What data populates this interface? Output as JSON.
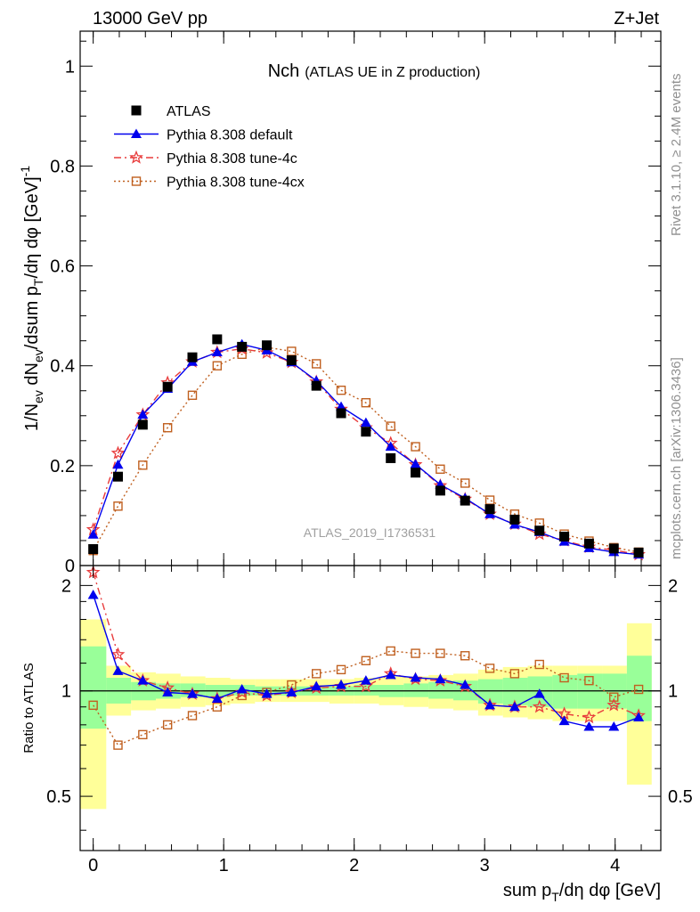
{
  "header": {
    "left": "13000 GeV pp",
    "right": "Z+Jet"
  },
  "side_labels": {
    "rivet": "Rivet 3.1.10, ≥ 2.4M events",
    "mcplots": "mcplots.cern.ch [arXiv:1306.3436]"
  },
  "colors": {
    "atlas": "#000000",
    "default": "#0000ee",
    "tune4c": "#e83c3c",
    "tune4cx": "#c06020",
    "band_yellow": "#ffff99",
    "band_green": "#99ff99"
  },
  "chart_data": [
    {
      "type": "scatter",
      "title_main": "Nch",
      "title_sub": "(ATLAS UE in Z production)",
      "analysis_label": "ATLAS_2019_I1736531",
      "ylabel": "1/N_ev dN_ev/dsum p_T/dη dφ [GeV]^-1",
      "xlim": [
        -0.1,
        4.35
      ],
      "ylim": [
        0,
        1.07
      ],
      "yticks": [
        0,
        0.2,
        0.4,
        0.6,
        0.8,
        1
      ],
      "ytick_labels": [
        "0",
        "0.2",
        "0.4",
        "0.6",
        "0.8",
        "1"
      ],
      "legend_position": "top-left",
      "x": [
        0.0,
        0.19,
        0.38,
        0.57,
        0.76,
        0.95,
        1.14,
        1.33,
        1.52,
        1.71,
        1.9,
        2.09,
        2.28,
        2.47,
        2.66,
        2.85,
        3.04,
        3.23,
        3.42,
        3.61,
        3.8,
        3.99,
        4.18
      ],
      "series": [
        {
          "name": "ATLAS",
          "marker": "square",
          "values": [
            0.033,
            0.178,
            0.282,
            0.358,
            0.417,
            0.453,
            0.438,
            0.441,
            0.411,
            0.36,
            0.305,
            0.268,
            0.215,
            0.186,
            0.15,
            0.13,
            0.113,
            0.092,
            0.07,
            0.058,
            0.044,
            0.034,
            0.026
          ]
        },
        {
          "name": "Pythia 8.308 default",
          "marker": "triangle",
          "values": [
            0.062,
            0.202,
            0.302,
            0.354,
            0.408,
            0.427,
            0.443,
            0.431,
            0.407,
            0.37,
            0.318,
            0.286,
            0.238,
            0.203,
            0.162,
            0.135,
            0.103,
            0.082,
            0.067,
            0.048,
            0.035,
            0.027,
            0.022
          ]
        },
        {
          "name": "Pythia 8.308 tune-4c",
          "marker": "star",
          "values": [
            0.072,
            0.225,
            0.302,
            0.366,
            0.408,
            0.427,
            0.434,
            0.426,
            0.407,
            0.368,
            0.313,
            0.276,
            0.245,
            0.202,
            0.16,
            0.133,
            0.103,
            0.083,
            0.063,
            0.05,
            0.037,
            0.031,
            0.022
          ]
        },
        {
          "name": "Pythia 8.308 tune-4cx",
          "marker": "open-square",
          "values": [
            0.03,
            0.119,
            0.201,
            0.276,
            0.341,
            0.4,
            0.423,
            0.437,
            0.429,
            0.404,
            0.351,
            0.326,
            0.279,
            0.238,
            0.193,
            0.165,
            0.131,
            0.103,
            0.085,
            0.063,
            0.049,
            0.036,
            0.027
          ]
        }
      ]
    },
    {
      "type": "scatter",
      "ylabel": "Ratio to ATLAS",
      "xlabel": "sum p_T/dη dφ [GeV]",
      "xlim": [
        -0.1,
        4.35
      ],
      "ylim": [
        0.35,
        2.28
      ],
      "xticks": [
        0,
        1,
        2,
        3,
        4
      ],
      "xtick_labels": [
        "0",
        "1",
        "2",
        "3",
        "4"
      ],
      "yticks": [
        0.5,
        1,
        2
      ],
      "ytick_labels": [
        "0.5",
        "1",
        "2"
      ],
      "bin_edges": [
        -0.1,
        0.1,
        0.29,
        0.48,
        0.67,
        0.86,
        1.05,
        1.24,
        1.43,
        1.62,
        1.81,
        2.0,
        2.19,
        2.38,
        2.57,
        2.76,
        2.95,
        3.14,
        3.33,
        3.52,
        3.71,
        3.9,
        4.09,
        4.28
      ],
      "yellow_band": [
        [
          0.46,
          1.6
        ],
        [
          0.85,
          1.18
        ],
        [
          0.88,
          1.13
        ],
        [
          0.89,
          1.12
        ],
        [
          0.9,
          1.1
        ],
        [
          0.91,
          1.09
        ],
        [
          0.92,
          1.08
        ],
        [
          0.93,
          1.08
        ],
        [
          0.93,
          1.08
        ],
        [
          0.93,
          1.08
        ],
        [
          0.92,
          1.08
        ],
        [
          0.92,
          1.09
        ],
        [
          0.91,
          1.1
        ],
        [
          0.9,
          1.1
        ],
        [
          0.89,
          1.11
        ],
        [
          0.88,
          1.12
        ],
        [
          0.85,
          1.15
        ],
        [
          0.84,
          1.17
        ],
        [
          0.83,
          1.18
        ],
        [
          0.82,
          1.18
        ],
        [
          0.82,
          1.18
        ],
        [
          0.82,
          1.18
        ],
        [
          0.54,
          1.56
        ]
      ],
      "green_band": [
        [
          0.78,
          1.34
        ],
        [
          0.92,
          1.09
        ],
        [
          0.94,
          1.06
        ],
        [
          0.95,
          1.05
        ],
        [
          0.96,
          1.05
        ],
        [
          0.96,
          1.04
        ],
        [
          0.97,
          1.04
        ],
        [
          0.97,
          1.03
        ],
        [
          0.97,
          1.03
        ],
        [
          0.97,
          1.03
        ],
        [
          0.97,
          1.03
        ],
        [
          0.97,
          1.04
        ],
        [
          0.96,
          1.04
        ],
        [
          0.96,
          1.05
        ],
        [
          0.95,
          1.06
        ],
        [
          0.94,
          1.07
        ],
        [
          0.92,
          1.08
        ],
        [
          0.91,
          1.09
        ],
        [
          0.9,
          1.1
        ],
        [
          0.89,
          1.11
        ],
        [
          0.89,
          1.12
        ],
        [
          0.89,
          1.12
        ],
        [
          0.82,
          1.26
        ]
      ],
      "series": [
        {
          "name": "Pythia 8.308 default",
          "values": [
            1.88,
            1.14,
            1.07,
            0.99,
            0.98,
            0.95,
            1.01,
            0.98,
            0.99,
            1.03,
            1.04,
            1.07,
            1.11,
            1.09,
            1.08,
            1.04,
            0.91,
            0.9,
            0.98,
            0.82,
            0.79,
            0.79,
            0.84
          ]
        },
        {
          "name": "Pythia 8.308 tune-4c",
          "values": [
            2.18,
            1.27,
            1.07,
            1.02,
            0.98,
            0.95,
            0.99,
            0.97,
            0.99,
            1.02,
            1.03,
            1.03,
            1.12,
            1.08,
            1.07,
            1.03,
            0.91,
            0.9,
            0.9,
            0.86,
            0.84,
            0.91,
            0.85
          ]
        },
        {
          "name": "Pythia 8.308 tune-4cx",
          "values": [
            0.91,
            0.7,
            0.75,
            0.8,
            0.85,
            0.9,
            0.97,
            0.99,
            1.04,
            1.12,
            1.15,
            1.22,
            1.3,
            1.28,
            1.28,
            1.26,
            1.16,
            1.12,
            1.19,
            1.09,
            1.07,
            0.96,
            1.01
          ]
        }
      ]
    }
  ]
}
